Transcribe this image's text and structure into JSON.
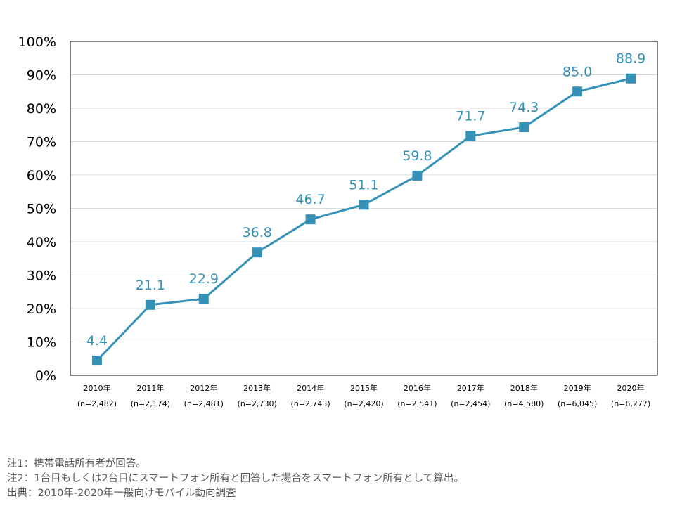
{
  "chart_data": {
    "type": "line",
    "title": "",
    "xlabel": "",
    "ylabel": "",
    "ylim": [
      0,
      100
    ],
    "y_ticks": [
      "0%",
      "10%",
      "20%",
      "30%",
      "40%",
      "50%",
      "60%",
      "70%",
      "80%",
      "90%",
      "100%"
    ],
    "grid": true,
    "categories": [
      "2010年",
      "2011年",
      "2012年",
      "2013年",
      "2014年",
      "2015年",
      "2016年",
      "2017年",
      "2018年",
      "2019年",
      "2020年"
    ],
    "sample_sizes": [
      "(n=2,482)",
      "(n=2,174)",
      "(n=2,481)",
      "(n=2,730)",
      "(n=2,743)",
      "(n=2,420)",
      "(n=2,541)",
      "(n=2,454)",
      "(n=4,580)",
      "(n=6,045)",
      "(n=6,277)"
    ],
    "series": [
      {
        "values": [
          4.4,
          21.1,
          22.9,
          36.8,
          46.7,
          51.1,
          59.8,
          71.7,
          74.3,
          85.0,
          88.9
        ],
        "labels": [
          "4.4",
          "21.1",
          "22.9",
          "36.8",
          "46.7",
          "51.1",
          "59.8",
          "71.7",
          "74.3",
          "85.0",
          "88.9"
        ],
        "color": "#3592B6"
      }
    ]
  },
  "notes": {
    "note1": "注1：携帯電話所有者が回答。",
    "note2": "注2：1台目もしくは2台目にスマートフォン所有と回答した場合をスマートフォン所有として算出。",
    "source": "出典：2010年-2020年一般向けモバイル動向調査"
  }
}
